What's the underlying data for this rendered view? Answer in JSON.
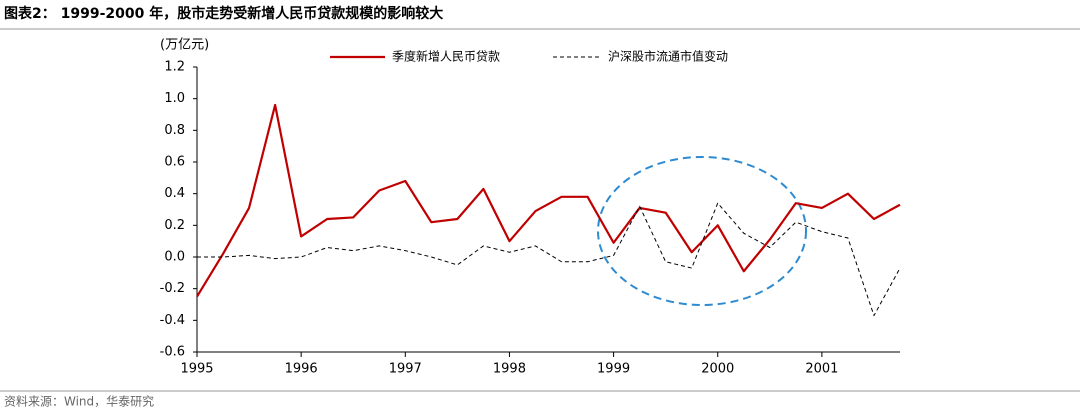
{
  "chart_data": {
    "type": "line",
    "title": "图表2：  1999-2000 年，股市走势受新增人民币贷款规模的影响较大",
    "y_label": "(万亿元)",
    "source": "资料来源：Wind，华泰研究",
    "legend": "top",
    "categories": [
      "1995",
      null,
      null,
      null,
      "1996",
      null,
      null,
      null,
      "1997",
      null,
      null,
      null,
      "1998",
      null,
      null,
      null,
      "1999",
      null,
      null,
      null,
      "2000",
      null,
      null,
      null,
      "2001",
      null,
      null,
      null
    ],
    "series": [
      {
        "name": "季度新增人民币贷款",
        "color": "#c00000",
        "dash": false,
        "values": [
          -0.25,
          0.02,
          0.31,
          0.96,
          0.13,
          0.24,
          0.25,
          0.42,
          0.48,
          0.22,
          0.24,
          0.43,
          0.1,
          0.29,
          0.38,
          0.38,
          0.09,
          0.31,
          0.28,
          0.03,
          0.2,
          -0.09,
          0.11,
          0.34,
          0.31,
          0.4,
          0.24,
          0.33
        ]
      },
      {
        "name": "沪深股市流通市值变动",
        "color": "#000000",
        "dash": true,
        "values": [
          0.0,
          0.0,
          0.01,
          -0.01,
          0.0,
          0.06,
          0.04,
          0.07,
          0.04,
          0.0,
          -0.05,
          0.07,
          0.03,
          0.07,
          -0.03,
          -0.03,
          0.01,
          0.32,
          -0.03,
          -0.07,
          0.34,
          0.15,
          0.06,
          0.22,
          0.16,
          0.12,
          -0.37,
          -0.07
        ]
      }
    ],
    "ylim": [
      -0.6,
      1.2
    ],
    "yticks": [
      1.2,
      {
        "value": 1,
        "label": "1.0"
      },
      0.8,
      0.6,
      0.4,
      0.2,
      {
        "value": 0,
        "label": "0.0"
      },
      -0.2,
      -0.4,
      -0.6
    ]
  }
}
